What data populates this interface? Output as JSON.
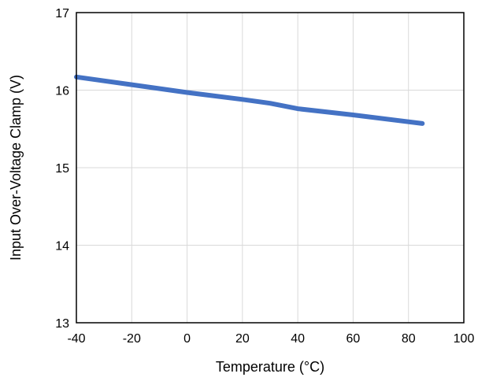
{
  "chart_data": {
    "type": "line",
    "title": "",
    "xlabel": "Temperature (°C)",
    "ylabel": "Input Over-Voltage Clamp (V)",
    "xlim": [
      -40,
      100
    ],
    "ylim": [
      13,
      17
    ],
    "xticks": [
      -40,
      -20,
      0,
      20,
      40,
      60,
      80,
      100
    ],
    "yticks": [
      13,
      14,
      15,
      16,
      17
    ],
    "grid": true,
    "legend": "none",
    "series": [
      {
        "color": "#4472c4",
        "x": [
          -40,
          -20,
          0,
          20,
          30,
          40,
          60,
          85
        ],
        "y": [
          16.17,
          16.07,
          15.97,
          15.88,
          15.83,
          15.76,
          15.68,
          15.57
        ]
      }
    ]
  }
}
